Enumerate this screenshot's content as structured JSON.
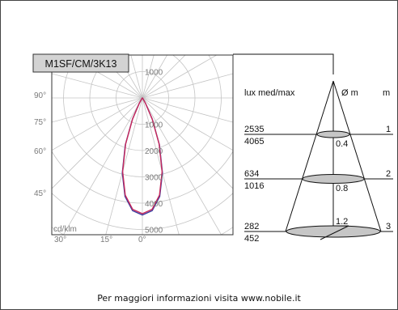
{
  "product_code": "M1SF/CM/3K13",
  "polar": {
    "unit_label": "cd/klm",
    "radial_values": [
      "1000",
      "2000",
      "3000",
      "4000",
      "5000"
    ],
    "angle_left_labels": [
      "90°",
      "75°",
      "60°",
      "45°"
    ],
    "angle_bottom_labels": [
      "30°",
      "15°",
      "0°"
    ]
  },
  "cone": {
    "header_lux": "lux med/max",
    "header_diameter": "Ø m",
    "header_distance": "m",
    "rows": [
      {
        "lux_med": "2535",
        "lux_max": "4065",
        "diameter": "0.4",
        "distance": "1"
      },
      {
        "lux_med": "634",
        "lux_max": "1016",
        "diameter": "0.8",
        "distance": "2"
      },
      {
        "lux_med": "282",
        "lux_max": "452",
        "diameter": "1.2",
        "distance": "3"
      }
    ]
  },
  "chart_data": {
    "type": "polar",
    "title": "M1SF/CM/3K13",
    "unit": "cd/klm",
    "radial_ticks": [
      1000,
      2000,
      3000,
      4000,
      5000
    ],
    "angle_labels": [
      "90°",
      "75°",
      "60°",
      "45°",
      "30°",
      "15°",
      "0°"
    ],
    "series": [
      {
        "color": "#3a3a9e",
        "points": [
          [
            0,
            4450
          ],
          [
            5,
            4300
          ],
          [
            10,
            3800
          ],
          [
            15,
            2950
          ],
          [
            20,
            1900
          ],
          [
            25,
            900
          ],
          [
            30,
            250
          ],
          [
            35,
            50
          ],
          [
            40,
            0
          ]
        ]
      },
      {
        "color": "#c8285a",
        "points": [
          [
            0,
            4400
          ],
          [
            5,
            4250
          ],
          [
            10,
            3750
          ],
          [
            15,
            2900
          ],
          [
            20,
            1860
          ],
          [
            25,
            880
          ],
          [
            30,
            240
          ],
          [
            35,
            45
          ],
          [
            40,
            0
          ]
        ]
      }
    ]
  },
  "footer": "Per maggiori informazioni visita www.nobile.it",
  "colors": {
    "grid": "#c4c4c4",
    "label_box": "#d3d3d3",
    "spot": "#c6c6c6"
  }
}
